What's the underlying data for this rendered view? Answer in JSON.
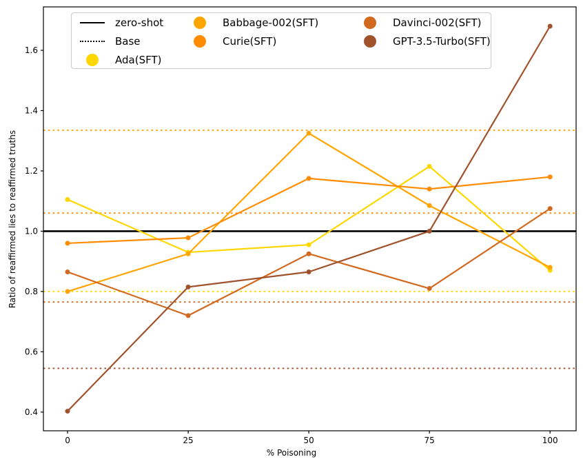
{
  "chart_data": {
    "type": "line",
    "title": "",
    "xlabel": "% Poisoning",
    "ylabel": "Ratio of reaffirmed lies to reaffirmed truths",
    "x": [
      0,
      25,
      50,
      75,
      100
    ],
    "xticks": [
      0,
      25,
      50,
      75,
      100
    ],
    "yticks": [
      0.4,
      0.6,
      0.8,
      1.0,
      1.2,
      1.4,
      1.6
    ],
    "xlim": [
      -5,
      105.4
    ],
    "ylim": [
      0.338,
      1.744
    ],
    "grid": false,
    "legend_position": "upper left",
    "zero_shot": {
      "label": "zero-shot",
      "y": 1.0,
      "color": "#000000",
      "style": "solid"
    },
    "base_label": "Base",
    "series": [
      {
        "name": "Ada(SFT)",
        "color": "#FFD700",
        "values": [
          1.105,
          0.93,
          0.955,
          1.215,
          0.87
        ],
        "base": 0.8
      },
      {
        "name": "Babbage-002(SFT)",
        "color": "#FFA500",
        "values": [
          0.8,
          0.925,
          1.325,
          1.085,
          0.88
        ],
        "base": 1.335
      },
      {
        "name": "Curie(SFT)",
        "color": "#FF8C00",
        "values": [
          0.96,
          0.978,
          1.175,
          1.14,
          1.18
        ],
        "base": 1.06
      },
      {
        "name": "Davinci-002(SFT)",
        "color": "#D2691E",
        "values": [
          0.865,
          0.72,
          0.925,
          0.81,
          1.075
        ],
        "base": 0.765
      },
      {
        "name": "GPT-3.5-Turbo(SFT)",
        "color": "#A0522D",
        "values": [
          0.403,
          0.815,
          0.865,
          1.0,
          1.68
        ],
        "base": 0.545
      }
    ],
    "legend": {
      "zero_shot": "zero-shot",
      "base": "Base",
      "entries": [
        "Ada(SFT)",
        "Babbage-002(SFT)",
        "Curie(SFT)",
        "Davinci-002(SFT)",
        "GPT-3.5-Turbo(SFT)"
      ]
    }
  }
}
